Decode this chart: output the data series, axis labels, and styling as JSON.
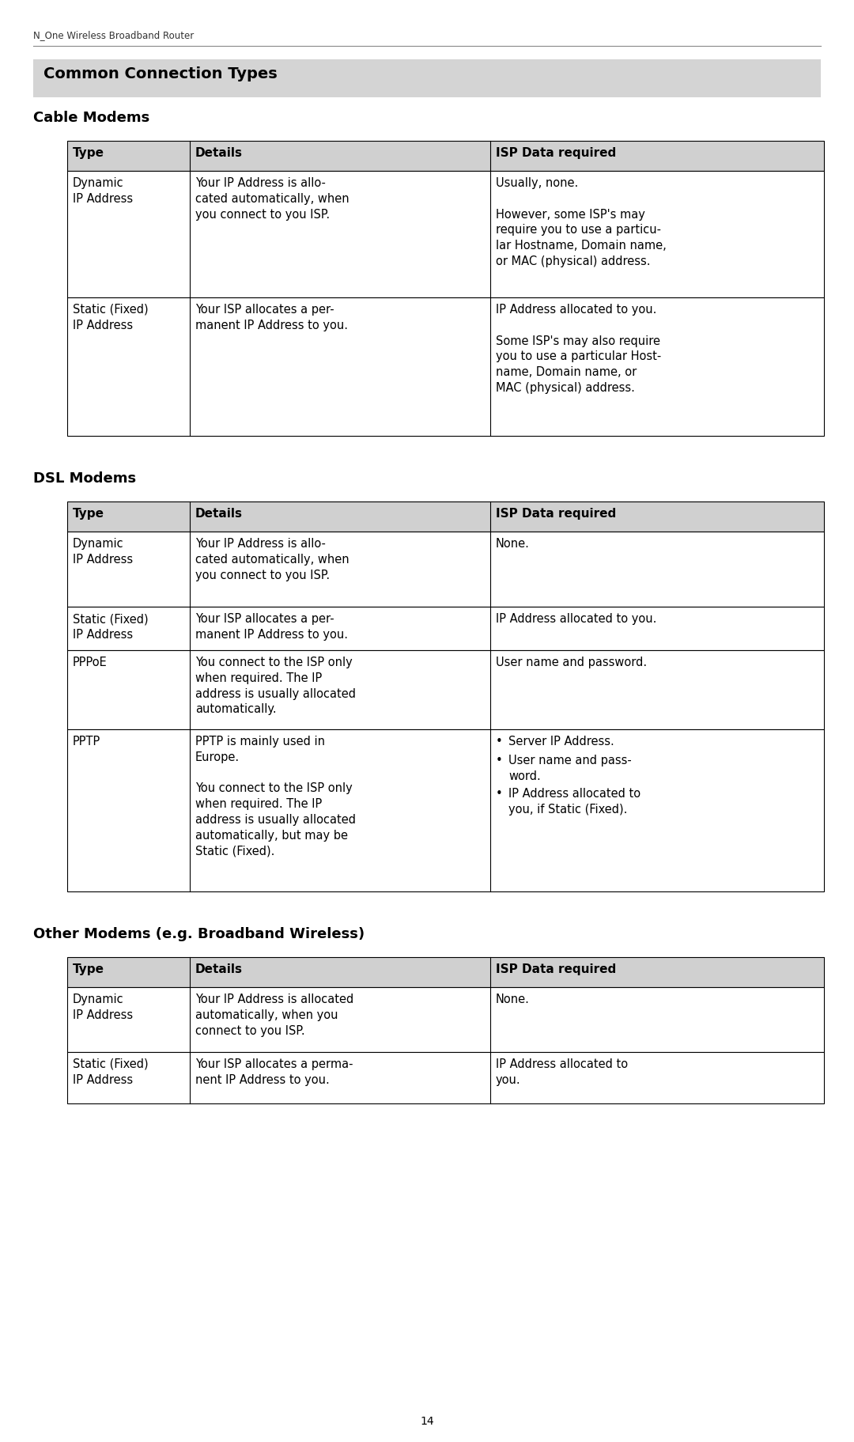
{
  "page_header": "N_One Wireless Broadband Router",
  "page_number": "14",
  "main_title": "Common Connection Types",
  "bg_color": "#ffffff",
  "header_bg": "#d4d4d4",
  "table_header_bg": "#d0d0d0",
  "section1_title": "Cable Modems",
  "section2_title": "DSL Modems",
  "section3_title": "Other Modems (e.g. Broadband Wireless)",
  "col_headers": [
    "Type",
    "Details",
    "ISP Data required"
  ],
  "cable_rows": [
    {
      "type": "Dynamic\nIP Address",
      "details": "Your IP Address is allo-\ncated automatically, when\nyou connect to you ISP.",
      "isp": "Usually, none.\n\nHowever, some ISP's may\nrequire you to use a particu-\nlar Hostname, Domain name,\nor MAC (physical) address."
    },
    {
      "type": "Static (Fixed)\nIP Address",
      "details": "Your ISP allocates a per-\nmanent IP Address to you.",
      "isp": "IP Address allocated to you.\n\nSome ISP's may also require\nyou to use a particular Host-\nname, Domain name, or\nMAC (physical) address."
    }
  ],
  "dsl_rows": [
    {
      "type": "Dynamic\nIP Address",
      "details": "Your IP Address is allo-\ncated automatically, when\nyou connect to you ISP.",
      "isp": "None.",
      "isp_bullets": null
    },
    {
      "type": "Static (Fixed)\nIP Address",
      "details": "Your ISP allocates a per-\nmanent IP Address to you.",
      "isp": "IP Address allocated to you.",
      "isp_bullets": null
    },
    {
      "type": "PPPoE",
      "details": "You connect to the ISP only\nwhen required. The IP\naddress is usually allocated\nautomatically.",
      "isp": "User name and password.",
      "isp_bullets": null
    },
    {
      "type": "PPTP",
      "details": "PPTP is mainly used in\nEurope.\n\nYou connect to the ISP only\nwhen required. The IP\naddress is usually allocated\nautomatically, but may be\nStatic (Fixed).",
      "isp": null,
      "isp_bullets": [
        "Server IP Address.",
        "User name and pass-\nword.",
        "IP Address allocated to\nyou, if Static (Fixed)."
      ]
    }
  ],
  "other_rows": [
    {
      "type": "Dynamic\nIP Address",
      "details": "Your IP Address is allocated\nautomatically, when you\nconnect to you ISP.",
      "isp": "None."
    },
    {
      "type": "Static (Fixed)\nIP Address",
      "details": "Your ISP allocates a perma-\nnent IP Address to you.",
      "isp": "IP Address allocated to\nyou."
    }
  ]
}
